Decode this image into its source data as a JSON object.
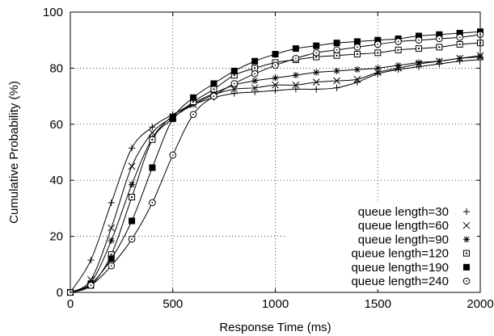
{
  "chart_data": {
    "type": "line",
    "title": "",
    "xlabel": "Response Time (ms)",
    "ylabel": "Cumulative Probability (%)",
    "xlim": [
      0,
      2000
    ],
    "ylim": [
      0,
      100
    ],
    "xticks": [
      0,
      500,
      1000,
      1500,
      2000
    ],
    "yticks": [
      0,
      20,
      40,
      60,
      80,
      100
    ],
    "grid": true,
    "grid_style": "dotted",
    "legend_position": "bottom-right",
    "series": [
      {
        "name": "queue length=30",
        "marker": "plus",
        "x": [
          0,
          100,
          200,
          300,
          400,
          500,
          600,
          700,
          800,
          900,
          1000,
          1100,
          1200,
          1300,
          1400,
          1500,
          1600,
          1700,
          1800,
          1900,
          2000
        ],
        "y": [
          0,
          11.5,
          32,
          51.5,
          59,
          63.5,
          67,
          69.5,
          71,
          71.5,
          72,
          72.5,
          72.5,
          73,
          75,
          78,
          79.5,
          80.5,
          81.5,
          82.5,
          83
        ]
      },
      {
        "name": "queue length=60",
        "marker": "cross",
        "x": [
          0,
          100,
          200,
          300,
          400,
          500,
          600,
          700,
          800,
          900,
          1000,
          1100,
          1200,
          1300,
          1400,
          1500,
          1600,
          1700,
          1800,
          1900,
          2000
        ],
        "y": [
          0,
          4.5,
          23,
          45,
          57,
          62.5,
          67,
          70.5,
          72.5,
          73,
          74,
          74,
          75,
          75.5,
          76,
          78.5,
          80,
          81.5,
          82.5,
          83.5,
          84.5
        ]
      },
      {
        "name": "queue length=90",
        "marker": "star",
        "x": [
          0,
          100,
          200,
          300,
          400,
          500,
          600,
          700,
          800,
          900,
          1000,
          1100,
          1200,
          1300,
          1400,
          1500,
          1600,
          1700,
          1800,
          1900,
          2000
        ],
        "y": [
          0,
          3.5,
          18.5,
          38.5,
          55,
          63,
          67.5,
          71,
          74,
          75.5,
          76.5,
          77.5,
          78.5,
          79,
          79.5,
          80,
          81,
          82,
          82.5,
          83.5,
          84
        ]
      },
      {
        "name": "queue length=120",
        "marker": "square-open",
        "x": [
          0,
          100,
          200,
          300,
          400,
          500,
          600,
          700,
          800,
          900,
          1000,
          1100,
          1200,
          1300,
          1400,
          1500,
          1600,
          1700,
          1800,
          1900,
          2000
        ],
        "y": [
          0,
          2.5,
          13.5,
          34,
          54.5,
          62,
          68,
          72.5,
          77.5,
          80,
          82,
          83,
          84,
          84.5,
          85,
          85.5,
          86.5,
          87,
          87.5,
          88.5,
          89
        ]
      },
      {
        "name": "queue length=190",
        "marker": "square-filled",
        "x": [
          0,
          100,
          200,
          300,
          400,
          500,
          600,
          700,
          800,
          900,
          1000,
          1100,
          1200,
          1300,
          1400,
          1500,
          1600,
          1700,
          1800,
          1900,
          2000
        ],
        "y": [
          0,
          3,
          12,
          25.5,
          44.5,
          62,
          69.5,
          74.5,
          79,
          82.5,
          85,
          87,
          88,
          89,
          89.5,
          90,
          90.5,
          91.5,
          92,
          92.5,
          93
        ]
      },
      {
        "name": "queue length=240",
        "marker": "circle-open",
        "x": [
          0,
          100,
          200,
          300,
          400,
          500,
          600,
          700,
          800,
          900,
          1000,
          1100,
          1200,
          1300,
          1400,
          1500,
          1600,
          1700,
          1800,
          1900,
          2000
        ],
        "y": [
          0,
          2.5,
          9.5,
          19,
          32,
          49,
          63.5,
          70,
          74.5,
          78,
          81,
          83.5,
          85.5,
          86.5,
          87.5,
          88.5,
          89.5,
          90,
          90.5,
          91,
          92
        ]
      }
    ]
  }
}
